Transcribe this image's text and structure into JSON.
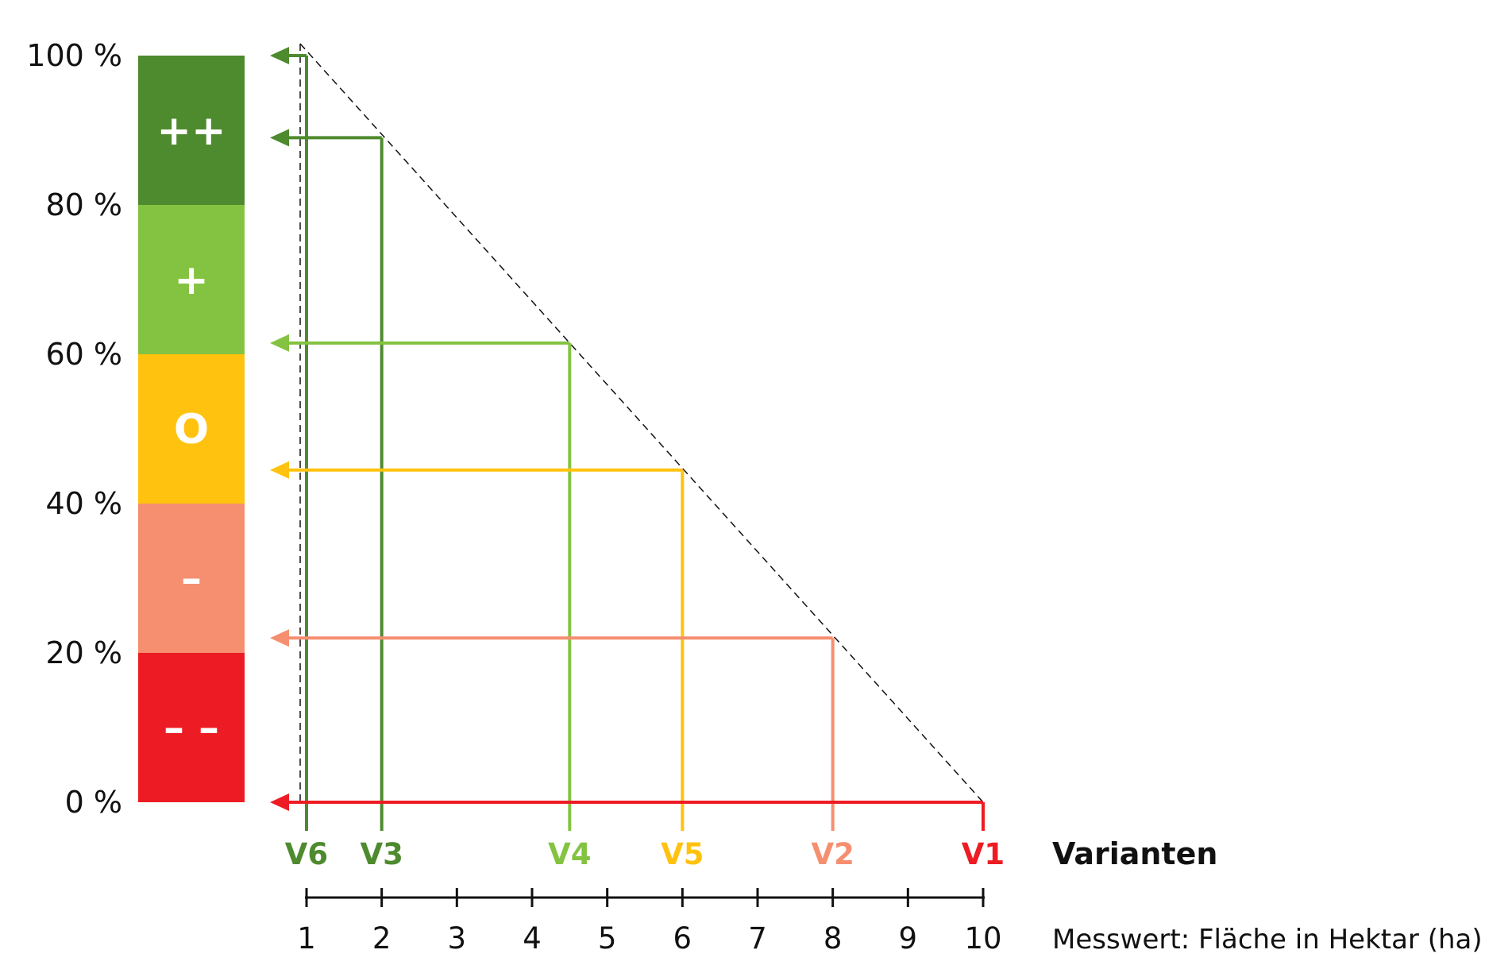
{
  "chart_data": {
    "type": "line",
    "y_axis": {
      "ticks": [
        {
          "value": 100,
          "label": "100 %"
        },
        {
          "value": 80,
          "label": "80 %"
        },
        {
          "value": 60,
          "label": "60 %"
        },
        {
          "value": 40,
          "label": "40 %"
        },
        {
          "value": 20,
          "label": "20 %"
        },
        {
          "value": 0,
          "label": "0 %"
        }
      ],
      "ylim": [
        0,
        100
      ]
    },
    "rating_bands": [
      {
        "from": 80,
        "to": 100,
        "symbol": "++",
        "color": "#4e8a2e"
      },
      {
        "from": 60,
        "to": 80,
        "symbol": "+",
        "color": "#84c341"
      },
      {
        "from": 40,
        "to": 60,
        "symbol": "O",
        "color": "#ffc20e"
      },
      {
        "from": 20,
        "to": 40,
        "symbol": "–",
        "color": "#f58f70"
      },
      {
        "from": 0,
        "to": 20,
        "symbol": "– –",
        "color": "#ed1c24"
      }
    ],
    "x_axis": {
      "label": "Messwert: Fläche in Hektar (ha)",
      "ticks": [
        "1",
        "2",
        "3",
        "4",
        "5",
        "6",
        "7",
        "8",
        "9",
        "10"
      ],
      "xlim": [
        1,
        10
      ]
    },
    "series_title": "Varianten",
    "reference_line": {
      "from": [
        1,
        100
      ],
      "to": [
        10,
        0
      ],
      "style": "dashed"
    },
    "variants": [
      {
        "name": "V6",
        "x": 1,
        "y": 100,
        "color": "#4e8a2e"
      },
      {
        "name": "V3",
        "x": 2,
        "y": 89,
        "color": "#4e8a2e"
      },
      {
        "name": "V4",
        "x": 4.5,
        "y": 61.5,
        "color": "#84c341"
      },
      {
        "name": "V5",
        "x": 6,
        "y": 44.5,
        "color": "#ffc20e"
      },
      {
        "name": "V2",
        "x": 8,
        "y": 22,
        "color": "#f58f70"
      },
      {
        "name": "V1",
        "x": 10,
        "y": 0,
        "color": "#ed1c24"
      }
    ]
  }
}
